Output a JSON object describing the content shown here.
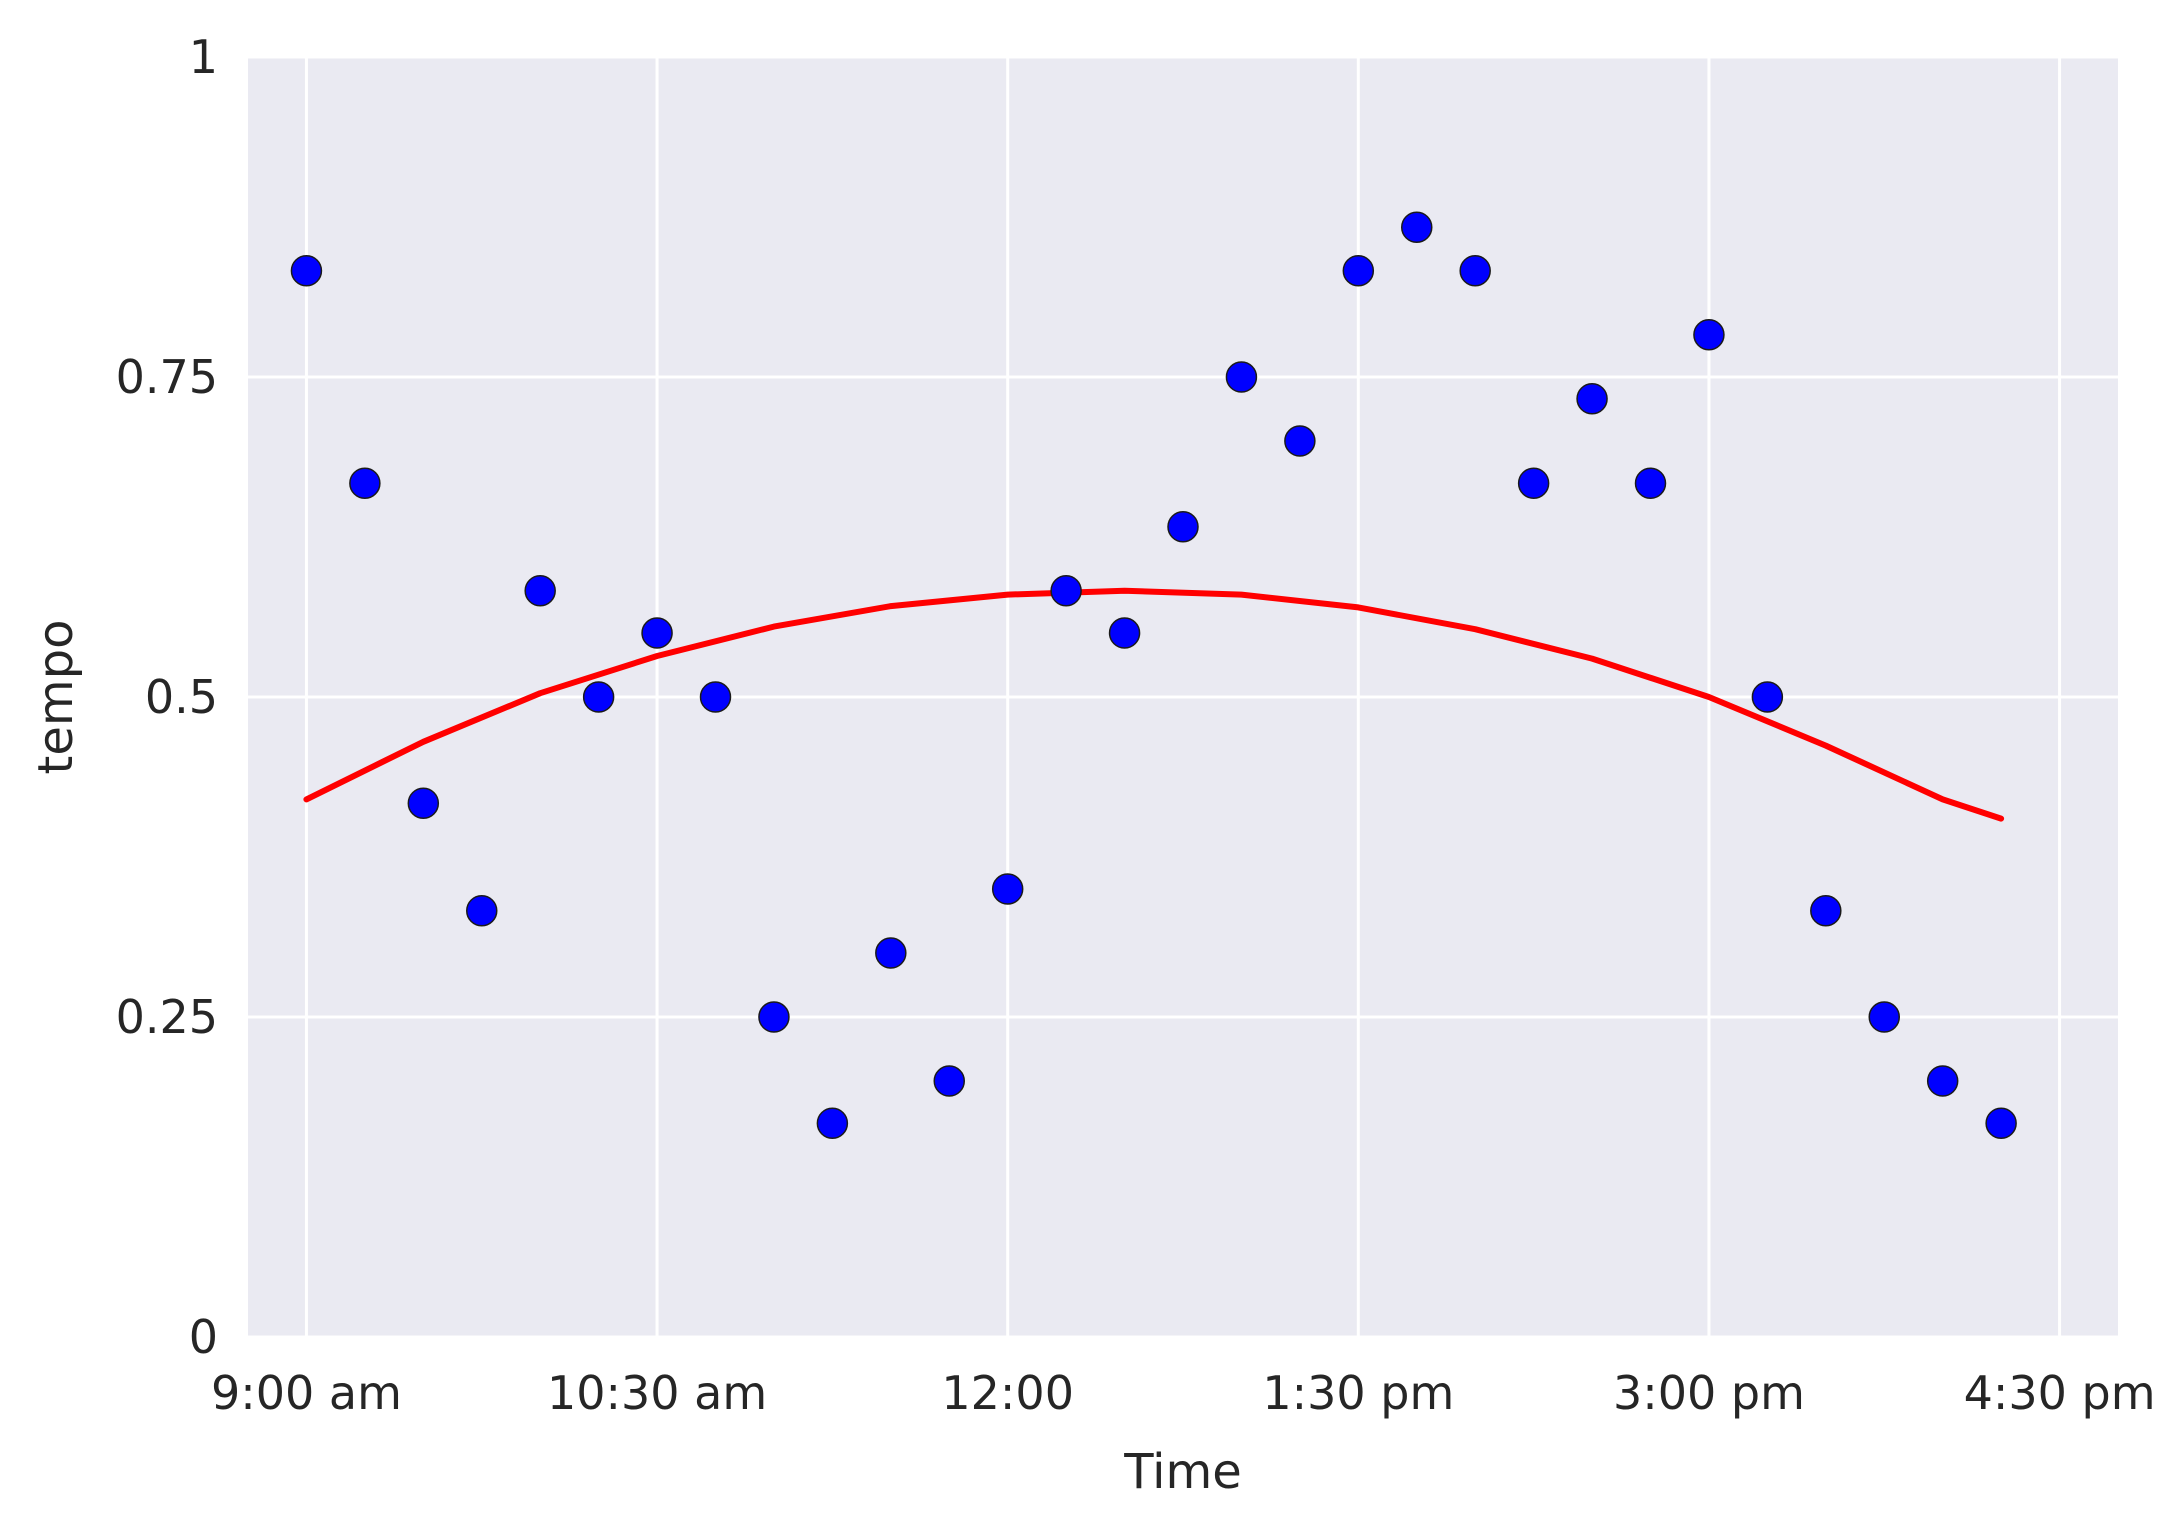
{
  "chart_data": {
    "type": "scatter",
    "title": "",
    "xlabel": "Time",
    "ylabel": "tempo",
    "xlim": [
      "08:45",
      "16:45"
    ],
    "ylim": [
      0,
      1
    ],
    "xticks": [
      {
        "value": "09:00",
        "label": "9:00 am"
      },
      {
        "value": "10:30",
        "label": "10:30 am"
      },
      {
        "value": "12:00",
        "label": "12:00"
      },
      {
        "value": "13:30",
        "label": "1:30 pm"
      },
      {
        "value": "15:00",
        "label": "3:00 pm"
      },
      {
        "value": "16:30",
        "label": "4:30 pm"
      }
    ],
    "yticks": [
      {
        "value": 0,
        "label": "0"
      },
      {
        "value": 0.25,
        "label": "0.25"
      },
      {
        "value": 0.5,
        "label": "0.5"
      },
      {
        "value": 0.75,
        "label": "0.75"
      },
      {
        "value": 1,
        "label": "1"
      }
    ],
    "grid": true,
    "background": "#EAEAF2",
    "series": [
      {
        "type": "scatter",
        "color": "#0000FF",
        "points": [
          {
            "x": "09:00",
            "y": 0.833
          },
          {
            "x": "09:15",
            "y": 0.667
          },
          {
            "x": "09:30",
            "y": 0.417
          },
          {
            "x": "09:45",
            "y": 0.333
          },
          {
            "x": "10:00",
            "y": 0.583
          },
          {
            "x": "10:15",
            "y": 0.5
          },
          {
            "x": "10:30",
            "y": 0.55
          },
          {
            "x": "10:45",
            "y": 0.5
          },
          {
            "x": "11:00",
            "y": 0.25
          },
          {
            "x": "11:15",
            "y": 0.167
          },
          {
            "x": "11:30",
            "y": 0.3
          },
          {
            "x": "11:45",
            "y": 0.2
          },
          {
            "x": "12:00",
            "y": 0.35
          },
          {
            "x": "12:15",
            "y": 0.583
          },
          {
            "x": "12:30",
            "y": 0.55
          },
          {
            "x": "12:45",
            "y": 0.633
          },
          {
            "x": "13:00",
            "y": 0.75
          },
          {
            "x": "13:15",
            "y": 0.7
          },
          {
            "x": "13:30",
            "y": 0.833
          },
          {
            "x": "13:45",
            "y": 0.867
          },
          {
            "x": "14:00",
            "y": 0.833
          },
          {
            "x": "14:15",
            "y": 0.667
          },
          {
            "x": "14:30",
            "y": 0.733
          },
          {
            "x": "14:45",
            "y": 0.667
          },
          {
            "x": "15:00",
            "y": 0.783
          },
          {
            "x": "15:15",
            "y": 0.5
          },
          {
            "x": "15:30",
            "y": 0.333
          },
          {
            "x": "15:45",
            "y": 0.25
          },
          {
            "x": "16:00",
            "y": 0.2
          },
          {
            "x": "16:15",
            "y": 0.167
          }
        ]
      },
      {
        "type": "line",
        "color": "#FF0000",
        "points": [
          {
            "x": "09:00",
            "y": 0.42
          },
          {
            "x": "09:30",
            "y": 0.465
          },
          {
            "x": "10:00",
            "y": 0.503
          },
          {
            "x": "10:30",
            "y": 0.532
          },
          {
            "x": "11:00",
            "y": 0.555
          },
          {
            "x": "11:30",
            "y": 0.571
          },
          {
            "x": "12:00",
            "y": 0.58
          },
          {
            "x": "12:30",
            "y": 0.583
          },
          {
            "x": "13:00",
            "y": 0.58
          },
          {
            "x": "13:30",
            "y": 0.57
          },
          {
            "x": "14:00",
            "y": 0.553
          },
          {
            "x": "14:30",
            "y": 0.53
          },
          {
            "x": "15:00",
            "y": 0.5
          },
          {
            "x": "15:30",
            "y": 0.462
          },
          {
            "x": "16:00",
            "y": 0.42
          },
          {
            "x": "16:15",
            "y": 0.405
          }
        ]
      }
    ]
  }
}
